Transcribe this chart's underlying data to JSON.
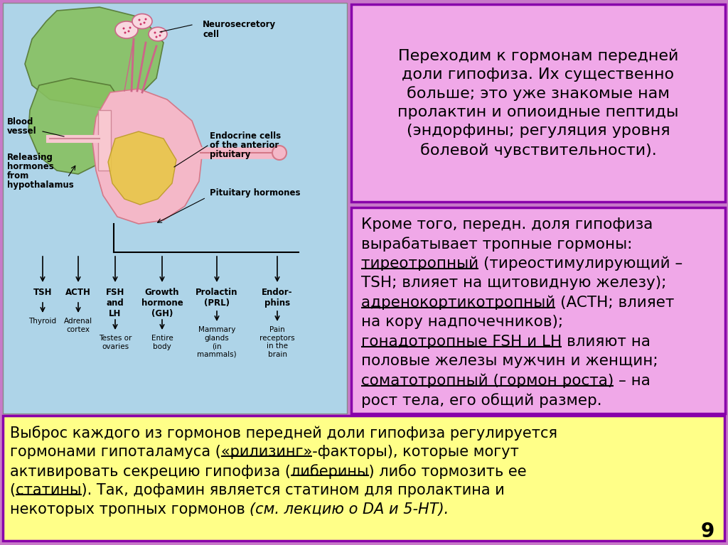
{
  "bg_color": "#c87ac8",
  "left_panel_bg": "#aed4e8",
  "box1_bg": "#f0a8e8",
  "box2_bg": "#f0a8e8",
  "box3_bg": "#ffff88",
  "box_border_color": "#8800aa",
  "slide_number": "9",
  "box1_text": "Переходим к гормонам передней\nдоли гипофиза. Их существенно\nбольше; это уже знакомые нам\nпролактин и опиоидные пептиды\n(эндорфины; регуляция уровня\nболевой чувствительности).",
  "box2_line0": "Кроме того, передн. доля гипофиза",
  "box2_line1": "вырабатывает тропные гормоны:",
  "box2_line2a": "тиреотропный",
  "box2_line2b": " (тиреостимулирующий –",
  "box2_line3": "TSH; влияет на щитовидную железу);",
  "box2_line4a": "адренокортикотропный",
  "box2_line4b": " (ACTH; влияет",
  "box2_line5": "на кору надпочечников);",
  "box2_line6a": "гонадотропные FSH и LH",
  "box2_line6b": " влияют на",
  "box2_line7": "половые железы мужчин и женщин;",
  "box2_line8a": "соматотропный (гормон роста)",
  "box2_line8b": " – на",
  "box2_line9": "рост тела, его общий размер.",
  "box3_line0": "Выброс каждого из гормонов передней доли гипофиза регулируется",
  "box3_line1a": "гормонами гипоталамуса (",
  "box3_line1b": "«рилизинг»",
  "box3_line1c": "-факторы), которые могут",
  "box3_line2a": "активировать секрецию гипофиза (",
  "box3_line2b": "либерины",
  "box3_line2c": ") либо тормозить ее",
  "box3_line3a": "(",
  "box3_line3b": "статины",
  "box3_line3c": "). Так, дофамин является статином для пролактина и",
  "box3_line4a": "некоторых тропных гормонов ",
  "box3_line4b": "(см. лекцию о DA и 5-HT)."
}
